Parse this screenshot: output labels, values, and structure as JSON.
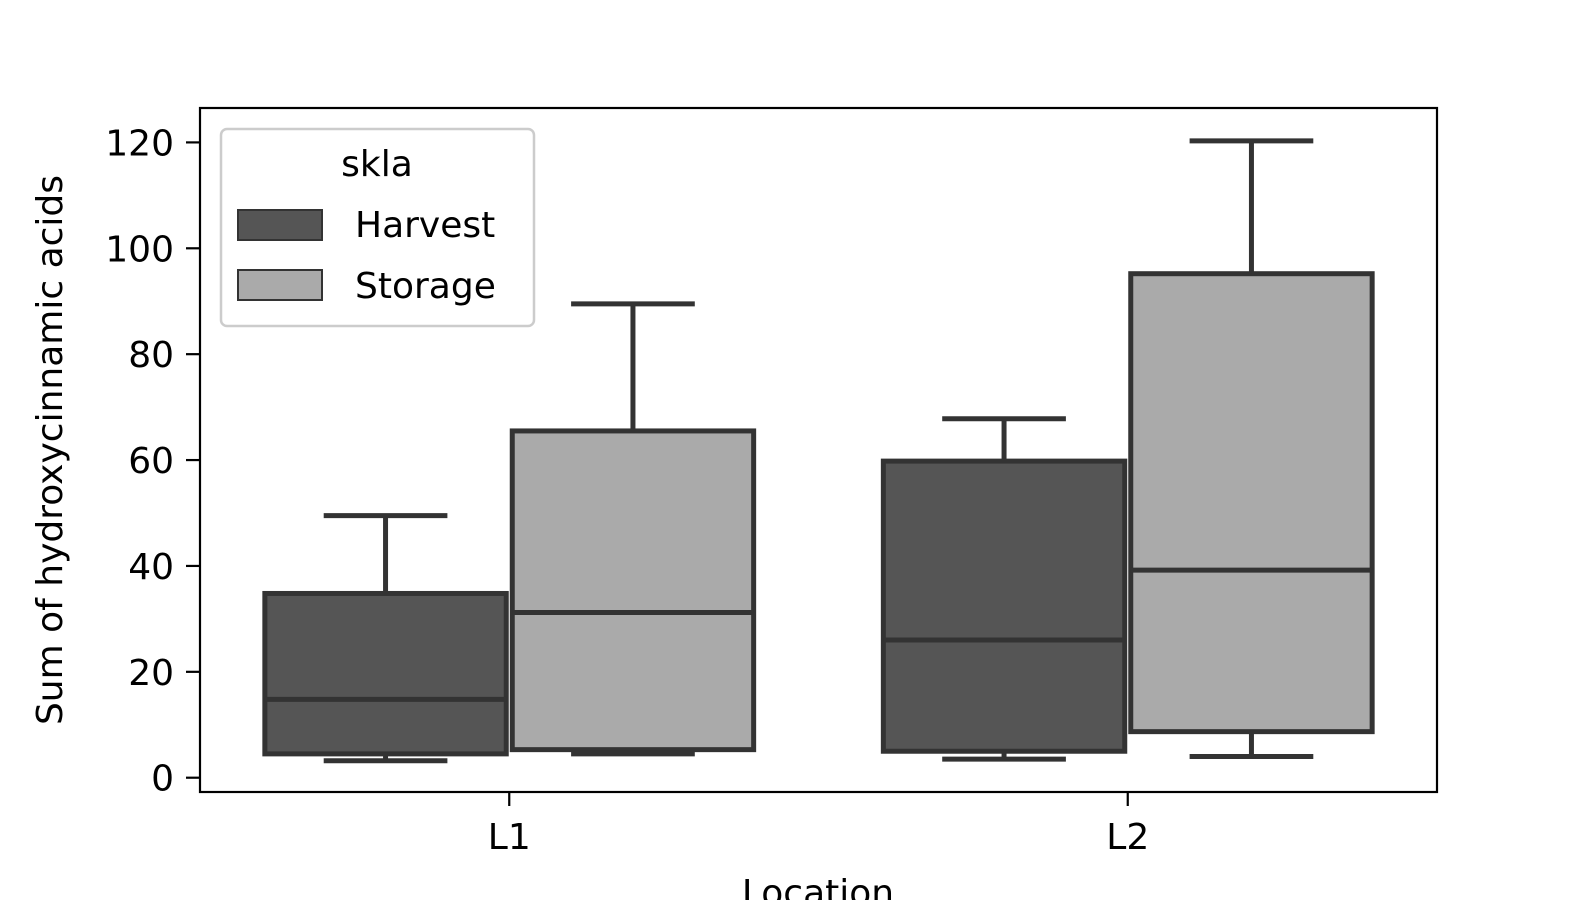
{
  "chart_data": {
    "type": "box",
    "categories": [
      "L1",
      "L2"
    ],
    "xlabel": "Location",
    "ylabel": "Sum of hydroxycinnamic acids",
    "ylim": [
      -2.7,
      126.5
    ],
    "yticks": [
      0,
      20,
      40,
      60,
      80,
      100,
      120
    ],
    "grid": false,
    "legend": {
      "title": "skla",
      "placement": "top-left"
    },
    "series": [
      {
        "name": "Harvest",
        "color": "#555555",
        "boxes": [
          {
            "category": "L1",
            "whisker_low": 3.2,
            "q1": 4.5,
            "median": 14.8,
            "q3": 34.8,
            "whisker_high": 49.5
          },
          {
            "category": "L2",
            "whisker_low": 3.5,
            "q1": 5.0,
            "median": 26.0,
            "q3": 59.8,
            "whisker_high": 67.8
          }
        ]
      },
      {
        "name": "Storage",
        "color": "#aaaaaa",
        "boxes": [
          {
            "category": "L1",
            "whisker_low": 4.5,
            "q1": 5.3,
            "median": 31.2,
            "q3": 65.5,
            "whisker_high": 89.5
          },
          {
            "category": "L2",
            "whisker_low": 4.0,
            "q1": 8.7,
            "median": 39.2,
            "q3": 95.2,
            "whisker_high": 120.3
          }
        ]
      }
    ]
  }
}
